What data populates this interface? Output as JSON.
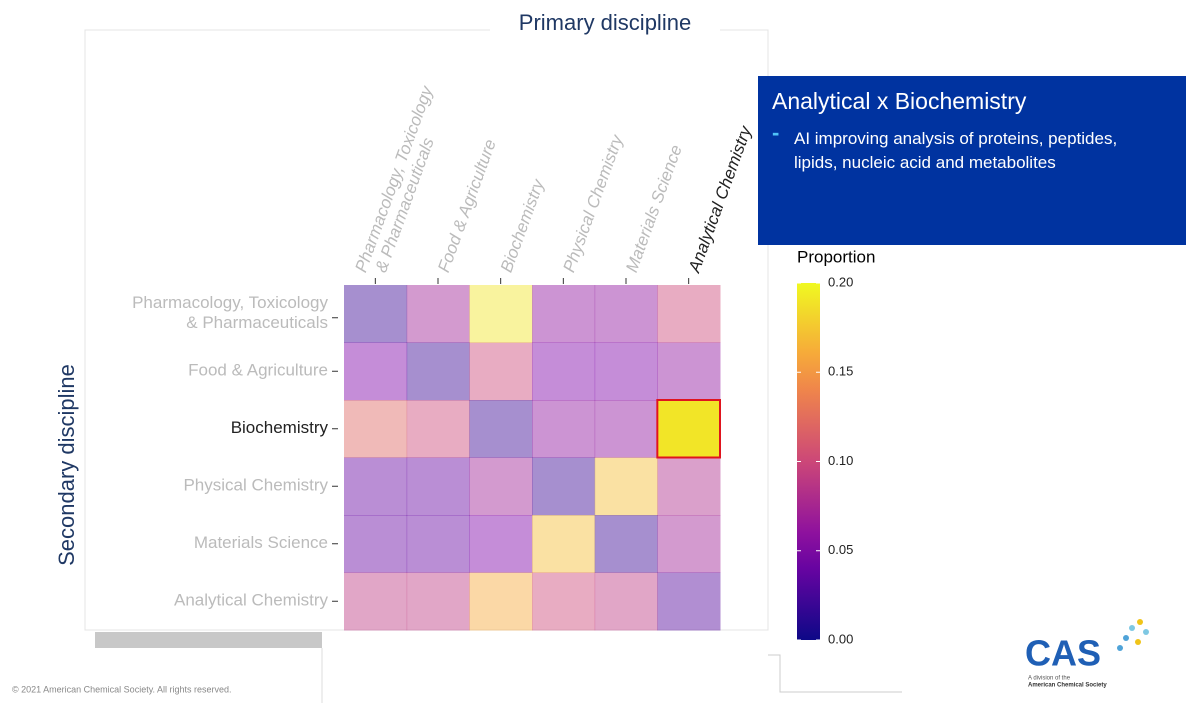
{
  "chart_data": {
    "type": "heatmap",
    "title": "Primary discipline",
    "y_label": "Secondary discipline",
    "x_categories": [
      [
        "Pharmacology, Toxicology",
        "& Pharmaceuticals"
      ],
      [
        "Food & Agriculture"
      ],
      [
        "Biochemistry"
      ],
      [
        "Physical Chemistry"
      ],
      [
        "Materials Science"
      ],
      [
        "Analytical Chemistry"
      ]
    ],
    "y_categories": [
      [
        "Pharmacology, Toxicology",
        "& Pharmaceuticals"
      ],
      [
        "Food & Agriculture"
      ],
      [
        "Biochemistry"
      ],
      [
        "Physical Chemistry"
      ],
      [
        "Materials Science"
      ],
      [
        "Analytical Chemistry"
      ]
    ],
    "values": [
      [
        0.02,
        0.07,
        0.19,
        0.06,
        0.06,
        0.1
      ],
      [
        0.05,
        0.02,
        0.1,
        0.05,
        0.05,
        0.06
      ],
      [
        0.12,
        0.1,
        0.02,
        0.06,
        0.06,
        0.19
      ],
      [
        0.04,
        0.04,
        0.07,
        0.02,
        0.17,
        0.08
      ],
      [
        0.04,
        0.04,
        0.05,
        0.17,
        0.02,
        0.07
      ],
      [
        0.09,
        0.09,
        0.16,
        0.1,
        0.09,
        0.03
      ]
    ],
    "colormap": "plasma",
    "legend_title": "Proportion",
    "clim": [
      0,
      0.2
    ],
    "cticks": [
      {
        "value": 0,
        "label": "0.00"
      },
      0.05,
      {
        "value": 0.1,
        "label": "0.10"
      },
      0.15,
      {
        "value": 0.2,
        "label": "0.20"
      }
    ],
    "highlight": {
      "row": 2,
      "col": 5
    }
  },
  "callout": {
    "title": "Analytical x Biochemistry",
    "bullet": "AI improving analysis of proteins, peptides, lipids, nucleic acid and metabolites"
  },
  "footer": {
    "copyright": "© 2021 American Chemical Society. All rights reserved.",
    "logo": "CAS",
    "logo_sub": [
      "A division of the",
      "American Chemical Society"
    ]
  }
}
